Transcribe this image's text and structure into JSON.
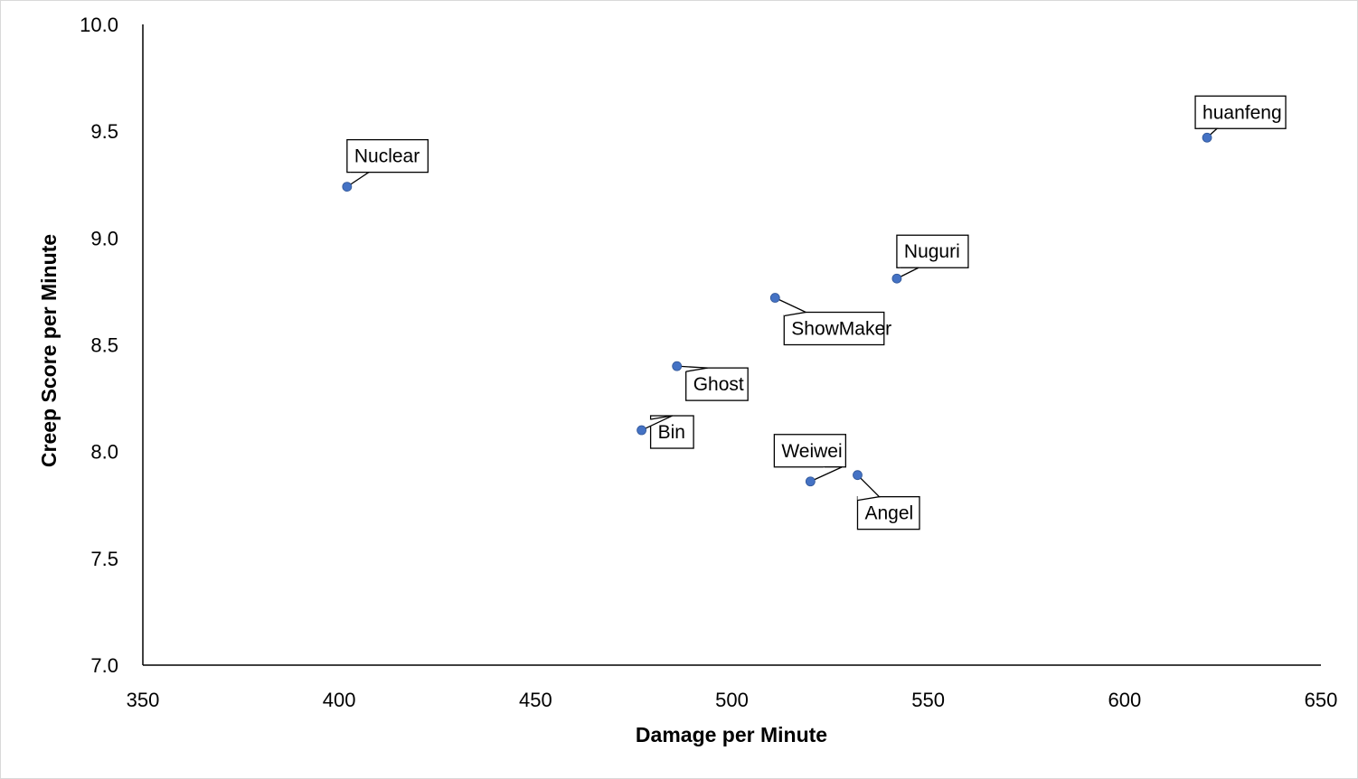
{
  "chart_data": {
    "type": "scatter",
    "title": "",
    "xlabel": "Damage per Minute",
    "ylabel": "Creep Score per Minute",
    "xlim": [
      350,
      650
    ],
    "ylim": [
      7.0,
      10.0
    ],
    "x_ticks": [
      "350",
      "400",
      "450",
      "500",
      "550",
      "600",
      "650"
    ],
    "y_ticks": [
      "7.0",
      "7.5",
      "8.0",
      "8.5",
      "9.0",
      "9.5",
      "10.0"
    ],
    "grid": false,
    "legend": "none",
    "marker_color": "#4472C4",
    "points": [
      {
        "label": "Nuclear",
        "x": 402,
        "y": 9.24
      },
      {
        "label": "huanfeng",
        "x": 621,
        "y": 9.47
      },
      {
        "label": "Nuguri",
        "x": 542,
        "y": 8.81
      },
      {
        "label": "ShowMaker",
        "x": 511,
        "y": 8.72
      },
      {
        "label": "Ghost",
        "x": 486,
        "y": 8.4
      },
      {
        "label": "Bin",
        "x": 477,
        "y": 8.1
      },
      {
        "label": "Weiwei",
        "x": 520,
        "y": 7.86
      },
      {
        "label": "Angel",
        "x": 532,
        "y": 7.89
      }
    ]
  }
}
